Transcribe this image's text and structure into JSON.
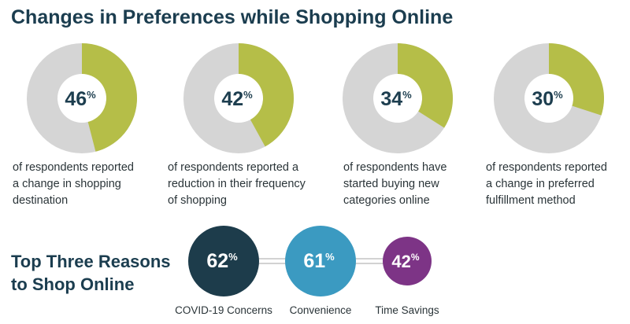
{
  "chart_data": [
    {
      "type": "pie",
      "title": "Changes in Preferences while Shopping Online",
      "unit": "%",
      "slices": [
        {
          "value": 46,
          "label": "of respondents reported\na change in shopping\ndestination"
        },
        {
          "value": 42,
          "label": "of respondents reported a\nreduction in their frequency\nof shopping"
        },
        {
          "value": 34,
          "label": "of respondents have\nstarted buying new\ncategories online"
        },
        {
          "value": 30,
          "label": "of respondents reported\na change in preferred\nfulfillment method"
        }
      ],
      "colors": {
        "filled": "#b5be48",
        "remainder": "#d5d5d5",
        "center": "#ffffff",
        "value_text": "#1d3e4f"
      }
    },
    {
      "type": "bar",
      "title": "Top Three Reasons\nto Shop Online",
      "unit": "%",
      "categories": [
        "COVID-19 Concerns",
        "Convenience",
        "Time Savings"
      ],
      "values": [
        62,
        61,
        42
      ],
      "colors": [
        "#1d3c4b",
        "#3b9ac1",
        "#7d3486"
      ],
      "connector_color": "#d2d2d2"
    }
  ]
}
